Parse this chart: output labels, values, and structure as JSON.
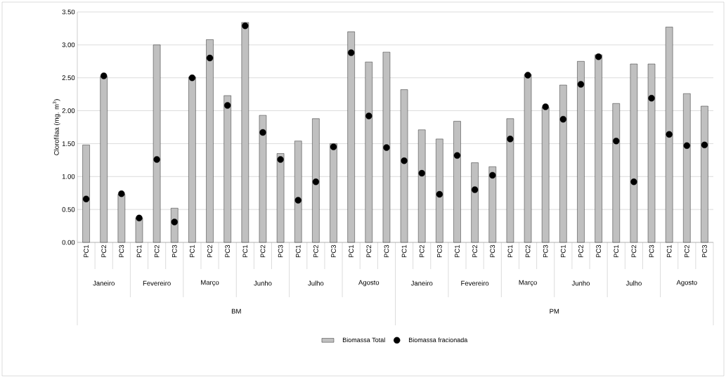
{
  "chart_data": {
    "type": "bar",
    "ylabel": "Clorofilaa (mg. m$^{3}$)",
    "categories": [
      "PC1",
      "PC2",
      "PC3",
      "PC1",
      "PC2",
      "PC3",
      "PC1",
      "PC2",
      "PC3",
      "PC1",
      "PC2",
      "PC3",
      "PC1",
      "PC2",
      "PC3",
      "PC1",
      "PC2",
      "PC3",
      "PC1",
      "PC2",
      "PC3",
      "PC1",
      "PC2",
      "PC3",
      "PC1",
      "PC2",
      "PC3",
      "PC1",
      "PC2",
      "PC3",
      "PC1",
      "PC2",
      "PC3",
      "PC1",
      "PC2",
      "PC3"
    ],
    "series": [
      {
        "name": "Biomassa Total",
        "type": "bar",
        "color": "#c0c0c0",
        "values": [
          1.48,
          2.52,
          0.73,
          0.37,
          3.0,
          0.52,
          2.51,
          3.08,
          2.23,
          3.34,
          1.93,
          1.35,
          1.54,
          1.88,
          1.5,
          3.2,
          2.74,
          2.89,
          2.32,
          1.71,
          1.57,
          1.84,
          1.21,
          1.15,
          1.88,
          2.55,
          2.05,
          2.39,
          2.75,
          2.85,
          2.11,
          2.71,
          2.71,
          3.27,
          2.26,
          2.07
        ]
      },
      {
        "name": "Biomassa fracionada",
        "type": "scatter",
        "color": "#000000",
        "values": [
          0.66,
          2.53,
          0.74,
          0.37,
          1.26,
          0.31,
          2.5,
          2.8,
          2.08,
          3.29,
          1.67,
          1.26,
          0.64,
          0.92,
          1.45,
          2.88,
          1.92,
          1.44,
          1.24,
          1.05,
          0.73,
          1.32,
          0.8,
          1.02,
          1.57,
          2.54,
          2.06,
          1.87,
          2.4,
          2.82,
          1.54,
          0.92,
          2.19,
          1.64,
          1.47,
          1.48
        ]
      }
    ],
    "ylim": [
      0,
      3.5
    ],
    "yticks": [
      {
        "value": 0,
        "label": "0.00"
      },
      {
        "value": 0.5,
        "label": "0.50"
      },
      {
        "value": 1,
        "label": "1.00"
      },
      {
        "value": 1.5,
        "label": "1.50"
      },
      {
        "value": 2,
        "label": "2.00"
      },
      {
        "value": 2.5,
        "label": "2.50"
      },
      {
        "value": 3,
        "label": "3.00"
      },
      {
        "value": 3.5,
        "label": "3.50"
      }
    ],
    "grid": "y",
    "legend": "bottom",
    "annotations": [
      "Janeiro",
      "Fevereiro",
      "Março",
      "Junho",
      "Julho",
      "Agosto",
      "Janeiro",
      "Fevereiro",
      "Março",
      "Junho",
      "Julho",
      "Agosto",
      "BM",
      "PM"
    ]
  }
}
